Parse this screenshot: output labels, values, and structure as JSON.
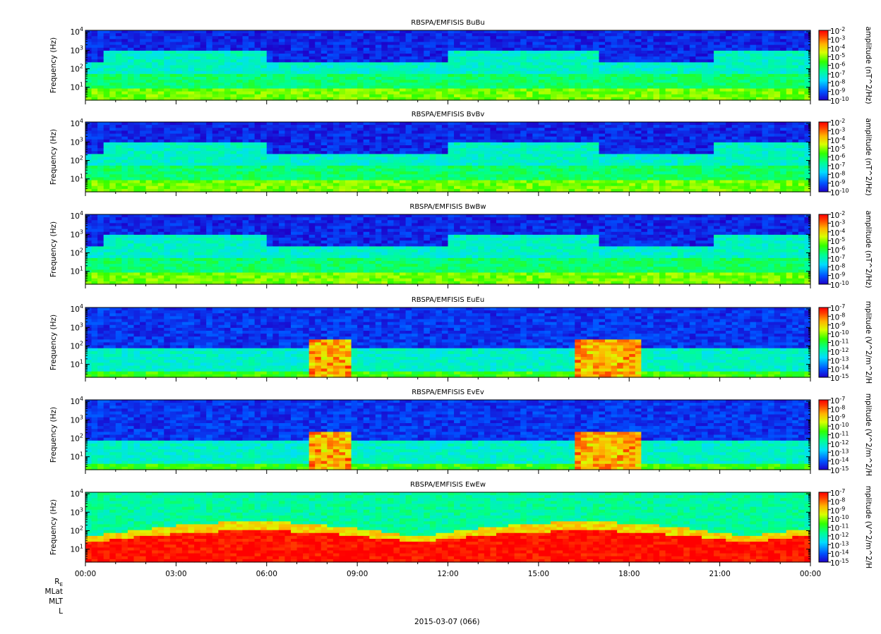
{
  "chart_data": {
    "type": "heatmap",
    "date_label": "2015-03-07 (066)",
    "x_ticks": [
      "00:00",
      "03:00",
      "06:00",
      "09:00",
      "12:00",
      "15:00",
      "18:00",
      "21:00",
      "00:00"
    ],
    "x_range_hours": [
      0,
      24
    ],
    "ephemeris_labels": [
      "RE",
      "MLat",
      "MLT",
      "L"
    ],
    "panels": [
      {
        "title": "RBSPA/EMFISIS  BuBu",
        "ylabel": "Frequency (Hz)",
        "ylog": true,
        "ylim": [
          2,
          12000
        ],
        "y_ticks": [
          {
            "base": "10",
            "exp": "1",
            "value": 10
          },
          {
            "base": "10",
            "exp": "2",
            "value": 100
          },
          {
            "base": "10",
            "exp": "3",
            "value": 1000
          },
          {
            "base": "10",
            "exp": "4",
            "value": 10000
          }
        ],
        "colorbar_label": "amplitude (nT^2/Hz)",
        "cmin_exp": -10,
        "cmax_exp": -2,
        "colorbar_ticks": [
          "-2",
          "-3",
          "-4",
          "-5",
          "-6",
          "-7",
          "-8",
          "-9",
          "-10"
        ]
      },
      {
        "title": "RBSPA/EMFISIS  BvBv",
        "ylabel": "Frequency (Hz)",
        "ylog": true,
        "ylim": [
          2,
          12000
        ],
        "y_ticks": [
          {
            "base": "10",
            "exp": "1",
            "value": 10
          },
          {
            "base": "10",
            "exp": "2",
            "value": 100
          },
          {
            "base": "10",
            "exp": "3",
            "value": 1000
          },
          {
            "base": "10",
            "exp": "4",
            "value": 10000
          }
        ],
        "colorbar_label": "amplitude (nT^2/Hz)",
        "cmin_exp": -10,
        "cmax_exp": -2,
        "colorbar_ticks": [
          "-2",
          "-3",
          "-4",
          "-5",
          "-6",
          "-7",
          "-8",
          "-9",
          "-10"
        ]
      },
      {
        "title": "RBSPA/EMFISIS  BwBw",
        "ylabel": "Frequency (Hz)",
        "ylog": true,
        "ylim": [
          2,
          12000
        ],
        "y_ticks": [
          {
            "base": "10",
            "exp": "1",
            "value": 10
          },
          {
            "base": "10",
            "exp": "2",
            "value": 100
          },
          {
            "base": "10",
            "exp": "3",
            "value": 1000
          },
          {
            "base": "10",
            "exp": "4",
            "value": 10000
          }
        ],
        "colorbar_label": "amplitude (nT^2/Hz)",
        "cmin_exp": -10,
        "cmax_exp": -2,
        "colorbar_ticks": [
          "-2",
          "-3",
          "-4",
          "-5",
          "-6",
          "-7",
          "-8",
          "-9",
          "-10"
        ]
      },
      {
        "title": "RBSPA/EMFISIS  EuEu",
        "ylabel": "Frequency (Hz)",
        "ylog": true,
        "ylim": [
          2,
          12000
        ],
        "y_ticks": [
          {
            "base": "10",
            "exp": "1",
            "value": 10
          },
          {
            "base": "10",
            "exp": "2",
            "value": 100
          },
          {
            "base": "10",
            "exp": "3",
            "value": 1000
          },
          {
            "base": "10",
            "exp": "4",
            "value": 10000
          }
        ],
        "colorbar_label": "mplitude (V^2/m^2/H",
        "cmin_exp": -15,
        "cmax_exp": -7,
        "colorbar_ticks": [
          "-7",
          "-8",
          "-9",
          "-10",
          "-11",
          "-12",
          "-13",
          "-14",
          "-15"
        ]
      },
      {
        "title": "RBSPA/EMFISIS  EvEv",
        "ylabel": "Frequency (Hz)",
        "ylog": true,
        "ylim": [
          2,
          12000
        ],
        "y_ticks": [
          {
            "base": "10",
            "exp": "1",
            "value": 10
          },
          {
            "base": "10",
            "exp": "2",
            "value": 100
          },
          {
            "base": "10",
            "exp": "3",
            "value": 1000
          },
          {
            "base": "10",
            "exp": "4",
            "value": 10000
          }
        ],
        "colorbar_label": "mplitude (V^2/m^2/H",
        "cmin_exp": -15,
        "cmax_exp": -7,
        "colorbar_ticks": [
          "-7",
          "-8",
          "-9",
          "-10",
          "-11",
          "-12",
          "-13",
          "-14",
          "-15"
        ]
      },
      {
        "title": "RBSPA/EMFISIS  EwEw",
        "ylabel": "Frequency (Hz)",
        "ylog": true,
        "ylim": [
          2,
          12000
        ],
        "y_ticks": [
          {
            "base": "10",
            "exp": "1",
            "value": 10
          },
          {
            "base": "10",
            "exp": "2",
            "value": 100
          },
          {
            "base": "10",
            "exp": "3",
            "value": 1000
          },
          {
            "base": "10",
            "exp": "4",
            "value": 10000
          }
        ],
        "colorbar_label": "mplitude (V^2/m^2/H",
        "cmin_exp": -15,
        "cmax_exp": -7,
        "colorbar_ticks": [
          "-7",
          "-8",
          "-9",
          "-10",
          "-11",
          "-12",
          "-13",
          "-14",
          "-15"
        ]
      }
    ]
  }
}
